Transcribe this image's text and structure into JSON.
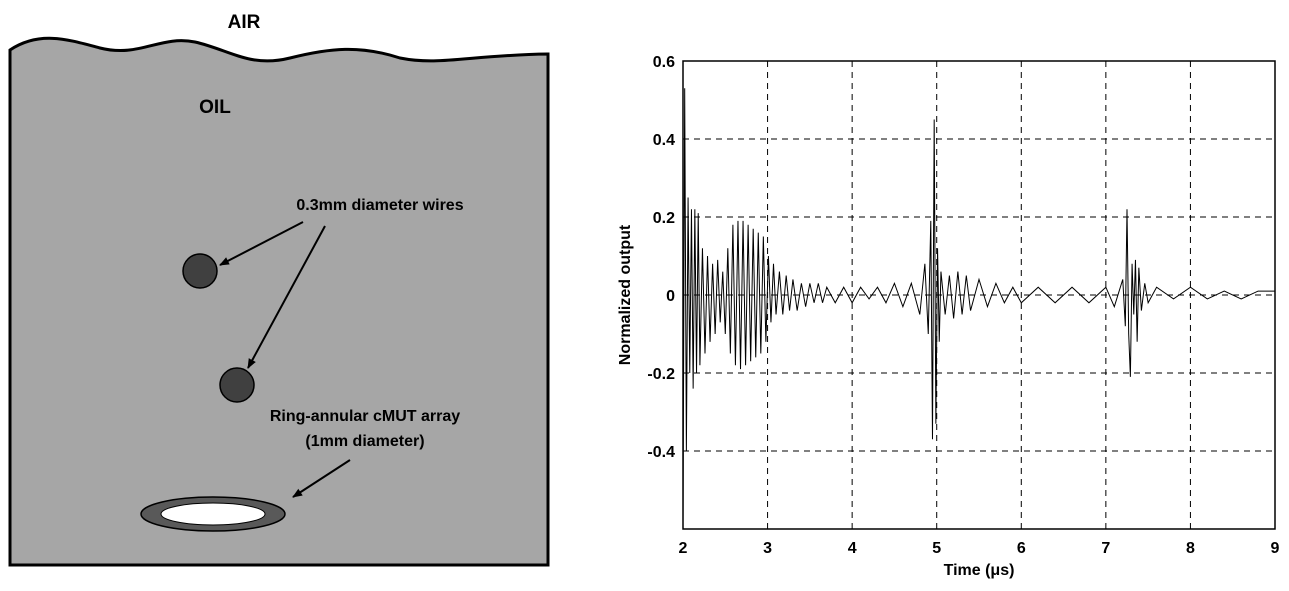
{
  "diagram": {
    "air_label": "AIR",
    "oil_label": "OIL",
    "wires_label": "0.3mm diameter wires",
    "array_label": [
      "Ring-annular cMUT array",
      "(1mm diameter)"
    ]
  },
  "chart_data": {
    "type": "line",
    "x_label": "Time (μs)",
    "y_label": "Normalized output",
    "xlim": [
      2,
      9
    ],
    "ylim": [
      -0.6,
      0.6
    ],
    "xticks": [
      2,
      3,
      4,
      5,
      6,
      7,
      8,
      9
    ],
    "yticks": [
      0.6,
      0.4,
      0.2,
      0,
      -0.2,
      -0.4
    ],
    "grid": true,
    "x": [
      2.0,
      2.02,
      2.04,
      2.06,
      2.08,
      2.1,
      2.12,
      2.14,
      2.16,
      2.18,
      2.2,
      2.23,
      2.26,
      2.29,
      2.32,
      2.35,
      2.38,
      2.41,
      2.44,
      2.47,
      2.5,
      2.53,
      2.56,
      2.59,
      2.62,
      2.65,
      2.68,
      2.71,
      2.74,
      2.77,
      2.8,
      2.83,
      2.86,
      2.89,
      2.92,
      2.95,
      2.98,
      3.01,
      3.04,
      3.07,
      3.1,
      3.14,
      3.18,
      3.22,
      3.26,
      3.3,
      3.35,
      3.4,
      3.45,
      3.5,
      3.55,
      3.6,
      3.65,
      3.7,
      3.8,
      3.9,
      4.0,
      4.1,
      4.2,
      4.3,
      4.4,
      4.5,
      4.6,
      4.7,
      4.8,
      4.86,
      4.9,
      4.93,
      4.95,
      4.97,
      4.99,
      5.01,
      5.03,
      5.05,
      5.1,
      5.15,
      5.2,
      5.25,
      5.3,
      5.35,
      5.4,
      5.5,
      5.6,
      5.7,
      5.8,
      5.9,
      6.0,
      6.2,
      6.4,
      6.6,
      6.8,
      7.0,
      7.1,
      7.2,
      7.23,
      7.25,
      7.27,
      7.29,
      7.31,
      7.33,
      7.35,
      7.37,
      7.39,
      7.42,
      7.46,
      7.5,
      7.6,
      7.8,
      8.0,
      8.2,
      8.4,
      8.6,
      8.8,
      9.0
    ],
    "series": [
      {
        "color": "#000000",
        "values": [
          -0.58,
          0.53,
          -0.4,
          0.25,
          -0.2,
          0.22,
          -0.24,
          0.22,
          -0.2,
          0.21,
          -0.18,
          0.12,
          -0.15,
          0.1,
          -0.12,
          0.08,
          -0.1,
          0.09,
          -0.07,
          0.06,
          -0.1,
          0.12,
          -0.15,
          0.18,
          -0.18,
          0.19,
          -0.19,
          0.19,
          -0.18,
          0.18,
          -0.17,
          0.17,
          -0.16,
          0.16,
          -0.15,
          0.15,
          -0.12,
          0.1,
          -0.07,
          0.08,
          -0.05,
          0.06,
          -0.05,
          0.05,
          -0.04,
          0.04,
          -0.04,
          0.03,
          -0.03,
          0.03,
          -0.02,
          0.03,
          -0.02,
          0.02,
          -0.02,
          0.02,
          -0.02,
          0.02,
          -0.01,
          0.02,
          -0.02,
          0.03,
          -0.03,
          0.03,
          -0.05,
          0.08,
          -0.1,
          0.19,
          -0.37,
          0.45,
          -0.33,
          0.12,
          -0.12,
          0.06,
          -0.05,
          0.05,
          -0.06,
          0.06,
          -0.05,
          0.05,
          -0.04,
          0.04,
          -0.03,
          0.03,
          -0.02,
          0.02,
          -0.02,
          0.02,
          -0.02,
          0.02,
          -0.02,
          0.02,
          -0.03,
          0.04,
          -0.08,
          0.22,
          -0.1,
          -0.21,
          0.08,
          -0.05,
          0.09,
          -0.12,
          0.07,
          -0.04,
          0.03,
          -0.02,
          0.02,
          -0.01,
          0.02,
          -0.01,
          0.01,
          -0.01,
          0.01,
          0.01
        ]
      }
    ]
  }
}
